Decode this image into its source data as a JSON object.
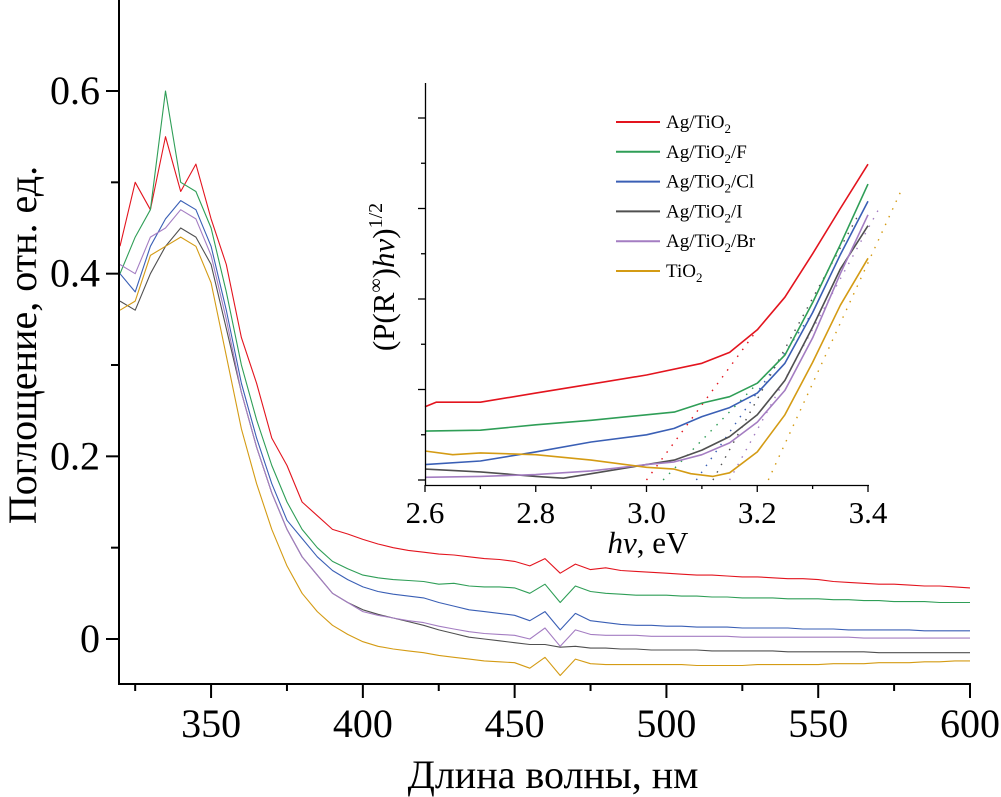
{
  "chart_data": [
    {
      "id": "main",
      "type": "line",
      "title": "",
      "xlabel": "Длина волны, нм",
      "ylabel": "Поглощение, отн. ед.",
      "xlim": [
        320,
        600
      ],
      "ylim": [
        -0.05,
        0.7
      ],
      "x_ticks": [
        350,
        400,
        450,
        500,
        550,
        600
      ],
      "x_tick_labels": [
        "350",
        "400",
        "450",
        "500",
        "550",
        "600"
      ],
      "x_minor_step": 25,
      "y_ticks": [
        0,
        0.2,
        0.4,
        0.6
      ],
      "y_tick_labels": [
        "0",
        "0.2",
        "0.4",
        "0.6"
      ],
      "y_minor_step": 0.1,
      "grid": false,
      "x": [
        320,
        325,
        330,
        335,
        340,
        345,
        350,
        355,
        360,
        365,
        370,
        375,
        380,
        385,
        390,
        395,
        400,
        405,
        410,
        415,
        420,
        425,
        430,
        435,
        440,
        445,
        450,
        455,
        460,
        465,
        470,
        475,
        480,
        485,
        490,
        495,
        500,
        505,
        510,
        515,
        520,
        525,
        530,
        535,
        540,
        545,
        550,
        555,
        560,
        565,
        570,
        575,
        580,
        585,
        590,
        595,
        600
      ],
      "series": [
        {
          "name": "Ag/TiO2",
          "color": "#e3141e",
          "values": [
            0.43,
            0.5,
            0.47,
            0.55,
            0.49,
            0.52,
            0.46,
            0.41,
            0.33,
            0.28,
            0.22,
            0.19,
            0.15,
            0.135,
            0.12,
            0.115,
            0.109,
            0.104,
            0.1,
            0.097,
            0.095,
            0.093,
            0.092,
            0.09,
            0.088,
            0.087,
            0.085,
            0.08,
            0.088,
            0.072,
            0.082,
            0.076,
            0.078,
            0.075,
            0.074,
            0.073,
            0.072,
            0.071,
            0.07,
            0.07,
            0.069,
            0.068,
            0.068,
            0.067,
            0.066,
            0.066,
            0.065,
            0.063,
            0.062,
            0.061,
            0.06,
            0.06,
            0.059,
            0.058,
            0.058,
            0.057,
            0.056
          ]
        },
        {
          "name": "Ag/TiO2/F",
          "color": "#2f9e57",
          "values": [
            0.4,
            0.44,
            0.47,
            0.6,
            0.5,
            0.49,
            0.45,
            0.38,
            0.3,
            0.24,
            0.19,
            0.15,
            0.12,
            0.1,
            0.085,
            0.077,
            0.07,
            0.067,
            0.065,
            0.064,
            0.063,
            0.06,
            0.061,
            0.058,
            0.057,
            0.057,
            0.056,
            0.05,
            0.06,
            0.04,
            0.058,
            0.052,
            0.05,
            0.049,
            0.048,
            0.048,
            0.048,
            0.047,
            0.047,
            0.046,
            0.046,
            0.045,
            0.045,
            0.045,
            0.044,
            0.044,
            0.044,
            0.043,
            0.043,
            0.042,
            0.042,
            0.041,
            0.041,
            0.041,
            0.04,
            0.04,
            0.04
          ]
        },
        {
          "name": "Ag/TiO2/Cl",
          "color": "#3a5fb5",
          "values": [
            0.4,
            0.38,
            0.43,
            0.46,
            0.48,
            0.47,
            0.43,
            0.36,
            0.28,
            0.22,
            0.17,
            0.13,
            0.11,
            0.09,
            0.075,
            0.065,
            0.057,
            0.052,
            0.049,
            0.047,
            0.045,
            0.04,
            0.036,
            0.032,
            0.03,
            0.028,
            0.026,
            0.02,
            0.03,
            0.01,
            0.028,
            0.02,
            0.018,
            0.016,
            0.015,
            0.015,
            0.014,
            0.014,
            0.013,
            0.013,
            0.013,
            0.012,
            0.012,
            0.012,
            0.012,
            0.011,
            0.011,
            0.011,
            0.01,
            0.01,
            0.01,
            0.01,
            0.01,
            0.009,
            0.009,
            0.009,
            0.009
          ]
        },
        {
          "name": "Ag/TiO2/I",
          "color": "#505050",
          "values": [
            0.37,
            0.36,
            0.4,
            0.43,
            0.45,
            0.44,
            0.41,
            0.34,
            0.27,
            0.21,
            0.16,
            0.12,
            0.09,
            0.07,
            0.05,
            0.04,
            0.032,
            0.027,
            0.023,
            0.019,
            0.015,
            0.01,
            0.006,
            0.002,
            0.0,
            -0.002,
            -0.004,
            -0.006,
            -0.006,
            -0.009,
            -0.008,
            -0.01,
            -0.01,
            -0.011,
            -0.011,
            -0.012,
            -0.012,
            -0.012,
            -0.012,
            -0.013,
            -0.013,
            -0.013,
            -0.013,
            -0.013,
            -0.014,
            -0.014,
            -0.014,
            -0.014,
            -0.014,
            -0.014,
            -0.015,
            -0.015,
            -0.015,
            -0.015,
            -0.015,
            -0.015,
            -0.015
          ]
        },
        {
          "name": "Ag/TiO2/Br",
          "color": "#a47dc2",
          "values": [
            0.41,
            0.4,
            0.44,
            0.45,
            0.47,
            0.46,
            0.42,
            0.35,
            0.27,
            0.21,
            0.16,
            0.12,
            0.09,
            0.07,
            0.05,
            0.04,
            0.03,
            0.026,
            0.023,
            0.02,
            0.018,
            0.014,
            0.011,
            0.008,
            0.006,
            0.005,
            0.004,
            0.0,
            0.012,
            -0.008,
            0.01,
            0.005,
            0.004,
            0.004,
            0.004,
            0.003,
            0.003,
            0.003,
            0.003,
            0.003,
            0.003,
            0.002,
            0.002,
            0.002,
            0.002,
            0.002,
            0.002,
            0.002,
            0.002,
            0.001,
            0.001,
            0.001,
            0.001,
            0.001,
            0.001,
            0.001,
            0.001
          ]
        },
        {
          "name": "TiO2",
          "color": "#d49b14",
          "values": [
            0.36,
            0.37,
            0.42,
            0.43,
            0.44,
            0.43,
            0.39,
            0.31,
            0.23,
            0.17,
            0.12,
            0.08,
            0.05,
            0.03,
            0.015,
            0.005,
            -0.003,
            -0.008,
            -0.011,
            -0.013,
            -0.015,
            -0.018,
            -0.02,
            -0.022,
            -0.024,
            -0.025,
            -0.026,
            -0.032,
            -0.02,
            -0.04,
            -0.022,
            -0.027,
            -0.028,
            -0.028,
            -0.028,
            -0.028,
            -0.028,
            -0.028,
            -0.029,
            -0.029,
            -0.029,
            -0.029,
            -0.028,
            -0.028,
            -0.028,
            -0.028,
            -0.028,
            -0.027,
            -0.027,
            -0.027,
            -0.026,
            -0.026,
            -0.026,
            -0.025,
            -0.025,
            -0.024,
            -0.024
          ]
        }
      ]
    },
    {
      "id": "inset",
      "type": "line",
      "title": "",
      "xlabel": "hν, eV",
      "xlabel_italic_part": "hν",
      "xlabel_rest": ", eV",
      "ylabel": "(P(R∞)hν)1/2",
      "ylabel_parts": {
        "base": "(P(R",
        "sup1": "∞",
        "mid": ")",
        "italic": "hν",
        "end": ")",
        "sup2": "1/2"
      },
      "xlim": [
        2.6,
        3.4
      ],
      "ylim": [
        -0.05,
        4.4
      ],
      "x_ticks": [
        2.6,
        2.8,
        3.0,
        3.2,
        3.4
      ],
      "x_tick_labels": [
        "2.6",
        "2.8",
        "3.0",
        "3.2",
        "3.4"
      ],
      "x_minor_step": 0.1,
      "y_ticks": [
        0,
        1,
        2,
        3,
        4
      ],
      "y_tick_labels": [],
      "y_minor_step": 0.5,
      "grid": false,
      "legend": {
        "position": "top-right"
      },
      "series": [
        {
          "name": "Ag/TiO2",
          "label_main": "Ag/TiO",
          "label_sub": "2",
          "label_suffix": "",
          "color": "#e3141e",
          "x": [
            2.6,
            2.62,
            2.7,
            2.8,
            2.9,
            3.0,
            3.1,
            3.15,
            3.2,
            3.25,
            3.3,
            3.35,
            3.4
          ],
          "y": [
            0.81,
            0.86,
            0.86,
            0.96,
            1.06,
            1.16,
            1.29,
            1.41,
            1.66,
            2.02,
            2.5,
            3.0,
            3.49
          ],
          "tangent": {
            "x": [
              3.0,
              3.2
            ],
            "y": [
              0.0,
              1.66
            ]
          }
        },
        {
          "name": "Ag/TiO2/F",
          "label_main": "Ag/TiO",
          "label_sub": "2",
          "label_suffix": "/F",
          "color": "#2f9e57",
          "x": [
            2.6,
            2.7,
            2.8,
            2.9,
            3.0,
            3.05,
            3.1,
            3.15,
            3.2,
            3.25,
            3.3,
            3.35,
            3.4
          ],
          "y": [
            0.54,
            0.55,
            0.61,
            0.66,
            0.72,
            0.75,
            0.85,
            0.92,
            1.07,
            1.38,
            1.96,
            2.6,
            3.27
          ],
          "tangent": {
            "x": [
              3.03,
              3.25
            ],
            "y": [
              0.0,
              1.38
            ]
          }
        },
        {
          "name": "Ag/TiO2/Cl",
          "label_main": "Ag/TiO",
          "label_sub": "2",
          "label_suffix": "/Cl",
          "color": "#3a5fb5",
          "x": [
            2.6,
            2.7,
            2.8,
            2.9,
            3.0,
            3.05,
            3.1,
            3.15,
            3.2,
            3.25,
            3.3,
            3.35,
            3.4
          ],
          "y": [
            0.17,
            0.21,
            0.31,
            0.42,
            0.5,
            0.57,
            0.7,
            0.8,
            0.96,
            1.29,
            1.85,
            2.49,
            3.08
          ],
          "tangent": {
            "x": [
              3.09,
              3.3
            ],
            "y": [
              0.0,
              1.85
            ]
          }
        },
        {
          "name": "Ag/TiO2/I",
          "label_main": "Ag/TiO",
          "label_sub": "2",
          "label_suffix": "/I",
          "color": "#505050",
          "x": [
            2.6,
            2.7,
            2.8,
            2.85,
            2.9,
            3.0,
            3.05,
            3.1,
            3.15,
            3.2,
            3.25,
            3.3,
            3.35,
            3.4
          ],
          "y": [
            0.12,
            0.09,
            0.04,
            0.02,
            0.07,
            0.17,
            0.22,
            0.33,
            0.48,
            0.72,
            1.1,
            1.69,
            2.33,
            2.81
          ],
          "tangent": {
            "x": [
              3.12,
              3.38
            ],
            "y": [
              0.0,
              2.9
            ]
          }
        },
        {
          "name": "Ag/TiO2/Br",
          "label_main": "Ag/TiO",
          "label_sub": "2",
          "label_suffix": "/Br",
          "color": "#a47dc2",
          "x": [
            2.6,
            2.7,
            2.8,
            2.9,
            3.0,
            3.05,
            3.1,
            3.15,
            3.2,
            3.25,
            3.3,
            3.35,
            3.4
          ],
          "y": [
            0.03,
            0.04,
            0.06,
            0.1,
            0.17,
            0.2,
            0.28,
            0.41,
            0.64,
            0.99,
            1.57,
            2.28,
            2.93
          ],
          "tangent": {
            "x": [
              3.15,
              3.42
            ],
            "y": [
              0.0,
              3.0
            ]
          }
        },
        {
          "name": "TiO2",
          "label_main": "TiO",
          "label_sub": "2",
          "label_suffix": "",
          "color": "#d49b14",
          "x": [
            2.6,
            2.65,
            2.7,
            2.8,
            2.9,
            3.0,
            3.05,
            3.08,
            3.12,
            3.15,
            3.2,
            3.25,
            3.3,
            3.35,
            3.4
          ],
          "y": [
            0.32,
            0.28,
            0.3,
            0.28,
            0.22,
            0.14,
            0.12,
            0.07,
            0.04,
            0.08,
            0.31,
            0.72,
            1.3,
            1.93,
            2.45
          ],
          "tangent": {
            "x": [
              3.22,
              3.46
            ],
            "y": [
              0.0,
              3.2
            ]
          }
        }
      ]
    }
  ]
}
